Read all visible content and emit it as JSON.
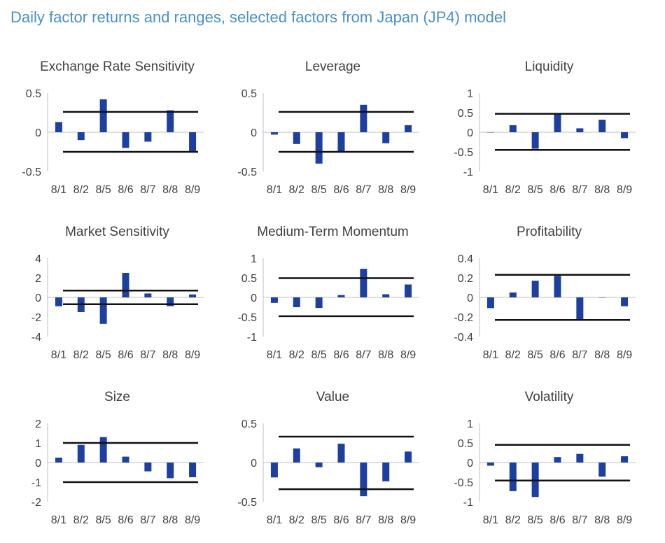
{
  "page_title": "Daily factor returns and ranges, selected factors from Japan (JP4) model",
  "colors": {
    "bar": "#1c3fa0",
    "range_line": "#111111",
    "axis": "#bfbfbf",
    "text": "#404040",
    "title_text": "#4a90c8"
  },
  "chart_data": [
    {
      "type": "bar",
      "title": "Exchange Rate Sensitivity",
      "categories": [
        "8/1",
        "8/2",
        "8/5",
        "8/6",
        "8/7",
        "8/8",
        "8/9"
      ],
      "values": [
        0.13,
        -0.1,
        0.42,
        -0.2,
        -0.12,
        0.28,
        -0.24
      ],
      "range": [
        -0.25,
        0.26
      ],
      "ylim": [
        -0.5,
        0.5
      ],
      "yticks": [
        0.5,
        0,
        -0.5
      ],
      "ytick_labels": [
        "0.5",
        "0",
        "-0.5"
      ]
    },
    {
      "type": "bar",
      "title": "Leverage",
      "categories": [
        "8/1",
        "8/2",
        "8/5",
        "8/6",
        "8/7",
        "8/8",
        "8/9"
      ],
      "values": [
        -0.03,
        -0.15,
        -0.4,
        -0.25,
        0.35,
        -0.14,
        0.09
      ],
      "range": [
        -0.25,
        0.26
      ],
      "ylim": [
        -0.5,
        0.5
      ],
      "yticks": [
        0.5,
        0,
        -0.5
      ],
      "ytick_labels": [
        "0.5",
        "0",
        "-0.5"
      ]
    },
    {
      "type": "bar",
      "title": "Liquidity",
      "categories": [
        "8/1",
        "8/2",
        "8/5",
        "8/6",
        "8/7",
        "8/8",
        "8/9"
      ],
      "values": [
        0.0,
        0.18,
        -0.42,
        0.46,
        0.1,
        0.32,
        -0.15
      ],
      "range": [
        -0.45,
        0.47
      ],
      "ylim": [
        -1,
        1
      ],
      "yticks": [
        1,
        0.5,
        0,
        -0.5,
        -1
      ],
      "ytick_labels": [
        "1",
        "0.5",
        "0",
        "-0.5",
        "-1"
      ]
    },
    {
      "type": "bar",
      "title": "Market Sensitivity",
      "categories": [
        "8/1",
        "8/2",
        "8/5",
        "8/6",
        "8/7",
        "8/8",
        "8/9"
      ],
      "values": [
        -0.9,
        -1.5,
        -2.7,
        2.5,
        0.4,
        -0.9,
        0.3
      ],
      "range": [
        -0.7,
        0.7
      ],
      "ylim": [
        -4,
        4
      ],
      "yticks": [
        4,
        2,
        0,
        -2,
        -4
      ],
      "ytick_labels": [
        "4",
        "2",
        "0",
        "-2",
        "-4"
      ]
    },
    {
      "type": "bar",
      "title": "Medium-Term Momentum",
      "categories": [
        "8/1",
        "8/2",
        "8/5",
        "8/6",
        "8/7",
        "8/8",
        "8/9"
      ],
      "values": [
        -0.14,
        -0.25,
        -0.27,
        0.06,
        0.73,
        0.08,
        0.33
      ],
      "range": [
        -0.48,
        0.49
      ],
      "ylim": [
        -1,
        1
      ],
      "yticks": [
        1,
        0.5,
        0,
        -0.5,
        -1
      ],
      "ytick_labels": [
        "1",
        "0.5",
        "0",
        "-0.5",
        "-1"
      ]
    },
    {
      "type": "bar",
      "title": "Profitability",
      "categories": [
        "8/1",
        "8/2",
        "8/5",
        "8/6",
        "8/7",
        "8/8",
        "8/9"
      ],
      "values": [
        -0.11,
        0.05,
        0.17,
        0.22,
        -0.23,
        0.0,
        -0.09
      ],
      "range": [
        -0.23,
        0.23
      ],
      "ylim": [
        -0.4,
        0.4
      ],
      "yticks": [
        0.4,
        0.2,
        0,
        -0.2,
        -0.4
      ],
      "ytick_labels": [
        "0.4",
        "0.2",
        "0",
        "-0.2",
        "-0.4"
      ]
    },
    {
      "type": "bar",
      "title": "Size",
      "categories": [
        "8/1",
        "8/2",
        "8/5",
        "8/6",
        "8/7",
        "8/8",
        "8/9"
      ],
      "values": [
        0.25,
        0.9,
        1.3,
        0.3,
        -0.45,
        -0.8,
        -0.75
      ],
      "range": [
        -1.0,
        1.0
      ],
      "ylim": [
        -2,
        2
      ],
      "yticks": [
        2,
        1,
        0,
        -1,
        -2
      ],
      "ytick_labels": [
        "2",
        "1",
        "0",
        "-1",
        "-2"
      ]
    },
    {
      "type": "bar",
      "title": "Value",
      "categories": [
        "8/1",
        "8/2",
        "8/5",
        "8/6",
        "8/7",
        "8/8",
        "8/9"
      ],
      "values": [
        -0.19,
        0.18,
        -0.06,
        0.24,
        -0.43,
        -0.24,
        0.14
      ],
      "range": [
        -0.34,
        0.33
      ],
      "ylim": [
        -0.5,
        0.5
      ],
      "yticks": [
        0.5,
        0,
        -0.5
      ],
      "ytick_labels": [
        "0.5",
        "0",
        "-0.5"
      ]
    },
    {
      "type": "bar",
      "title": "Volatility",
      "categories": [
        "8/1",
        "8/2",
        "8/5",
        "8/6",
        "8/7",
        "8/8",
        "8/9"
      ],
      "values": [
        -0.08,
        -0.73,
        -0.88,
        0.14,
        0.22,
        -0.36,
        0.16
      ],
      "range": [
        -0.46,
        0.45
      ],
      "ylim": [
        -1,
        1
      ],
      "yticks": [
        1,
        0.5,
        0,
        -0.5,
        -1
      ],
      "ytick_labels": [
        "1",
        "0.5",
        "0",
        "-0.5",
        "-1"
      ]
    }
  ]
}
